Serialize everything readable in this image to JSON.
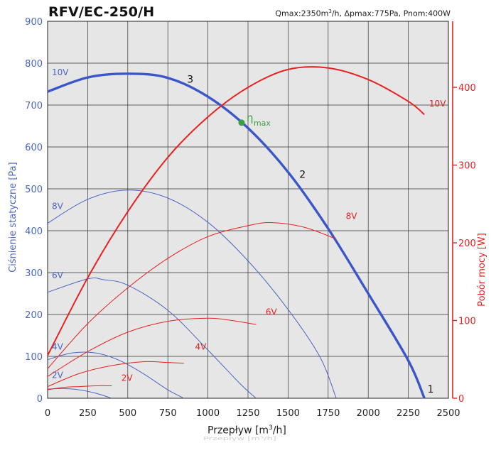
{
  "title": "RFV/EC-250/H",
  "subtitle": {
    "prefix": "Qmax:2350m",
    "sup": "3",
    "suffix": "/h, Δpmax:775Pa, Pnom:400W"
  },
  "xlabel": {
    "prefix": "Przepływ [m",
    "sup": "3",
    "suffix": "/h]"
  },
  "ghost_label": "Przepływ [m³/h]",
  "chart_data": {
    "type": "line",
    "xlabel": "Przepływ [m³/h]",
    "ylabel_left": "Ciśnienie statyczne [Pa]",
    "ylabel_right": "Pobór mocy [W]",
    "xlim": [
      0,
      2500
    ],
    "ylim_left": [
      0,
      900
    ],
    "ylim_right": [
      0,
      485
    ],
    "xticks": [
      0,
      250,
      500,
      750,
      1000,
      1250,
      1500,
      1750,
      2000,
      2250,
      2500
    ],
    "yticks_left": [
      0,
      100,
      200,
      300,
      400,
      500,
      600,
      700,
      800,
      900
    ],
    "yticks_right": [
      0,
      100,
      200,
      300,
      400
    ],
    "colors": {
      "pressure": "#4a66c0",
      "main": "#3a56c8",
      "power": "#e82020",
      "eta": "#3aa040",
      "grid": "#333333",
      "plot_bg": "#e6e6e6"
    },
    "pressure_curves": [
      {
        "name": "10V",
        "points": [
          [
            0,
            732
          ],
          [
            250,
            766
          ],
          [
            500,
            775
          ],
          [
            750,
            765
          ],
          [
            1000,
            720
          ],
          [
            1250,
            645
          ],
          [
            1500,
            540
          ],
          [
            1750,
            405
          ],
          [
            2000,
            250
          ],
          [
            2250,
            90
          ],
          [
            2350,
            0
          ]
        ]
      },
      {
        "name": "8V",
        "points": [
          [
            0,
            418
          ],
          [
            250,
            475
          ],
          [
            500,
            497
          ],
          [
            750,
            478
          ],
          [
            1000,
            420
          ],
          [
            1250,
            328
          ],
          [
            1500,
            212
          ],
          [
            1700,
            98
          ],
          [
            1800,
            0
          ]
        ]
      },
      {
        "name": "6V",
        "points": [
          [
            0,
            253
          ],
          [
            250,
            285
          ],
          [
            350,
            283
          ],
          [
            500,
            270
          ],
          [
            750,
            210
          ],
          [
            1000,
            115
          ],
          [
            1200,
            35
          ],
          [
            1300,
            0
          ]
        ]
      },
      {
        "name": "4V",
        "points": [
          [
            0,
            92
          ],
          [
            150,
            108
          ],
          [
            300,
            108
          ],
          [
            450,
            90
          ],
          [
            600,
            58
          ],
          [
            750,
            20
          ],
          [
            850,
            0
          ]
        ]
      },
      {
        "name": "2V",
        "points": [
          [
            0,
            22
          ],
          [
            100,
            23
          ],
          [
            200,
            20
          ],
          [
            300,
            12
          ],
          [
            400,
            0
          ]
        ]
      }
    ],
    "power_curves": [
      {
        "name": "10V",
        "points": [
          [
            0,
            55
          ],
          [
            250,
            155
          ],
          [
            500,
            240
          ],
          [
            750,
            310
          ],
          [
            1000,
            362
          ],
          [
            1250,
            400
          ],
          [
            1500,
            423
          ],
          [
            1750,
            425
          ],
          [
            2000,
            410
          ],
          [
            2250,
            382
          ],
          [
            2350,
            365
          ]
        ]
      },
      {
        "name": "8V",
        "points": [
          [
            0,
            38
          ],
          [
            250,
            96
          ],
          [
            500,
            142
          ],
          [
            750,
            180
          ],
          [
            1000,
            208
          ],
          [
            1250,
            222
          ],
          [
            1400,
            226
          ],
          [
            1600,
            220
          ],
          [
            1800,
            205
          ]
        ]
      },
      {
        "name": "6V",
        "points": [
          [
            0,
            28
          ],
          [
            250,
            60
          ],
          [
            500,
            85
          ],
          [
            750,
            99
          ],
          [
            1000,
            103
          ],
          [
            1150,
            100
          ],
          [
            1300,
            95
          ]
        ]
      },
      {
        "name": "4V",
        "points": [
          [
            0,
            15
          ],
          [
            200,
            32
          ],
          [
            400,
            42
          ],
          [
            600,
            47
          ],
          [
            750,
            46
          ],
          [
            850,
            45
          ]
        ]
      },
      {
        "name": "2V",
        "points": [
          [
            0,
            11
          ],
          [
            100,
            14
          ],
          [
            200,
            15
          ],
          [
            300,
            16
          ],
          [
            400,
            16
          ]
        ]
      }
    ],
    "pressure_labels": [
      {
        "text": "10V",
        "x": 0,
        "y": 780
      },
      {
        "text": "8V",
        "x": 0,
        "y": 460
      },
      {
        "text": "6V",
        "x": 0,
        "y": 295
      },
      {
        "text": "4V",
        "x": 0,
        "y": 125
      },
      {
        "text": "2V",
        "x": 0,
        "y": 57
      }
    ],
    "power_labels": [
      {
        "text": "10V",
        "x": 2380,
        "y": 380
      },
      {
        "text": "8V",
        "x": 1860,
        "y": 235
      },
      {
        "text": "6V",
        "x": 1360,
        "y": 112
      },
      {
        "text": "4V",
        "x": 920,
        "y": 67
      },
      {
        "text": "2V",
        "x": 460,
        "y": 27
      }
    ],
    "point_labels": [
      {
        "text": "3",
        "x": 870,
        "y": 762
      },
      {
        "text": "2",
        "x": 1570,
        "y": 535
      },
      {
        "text": "1",
        "x": 2370,
        "y": 22
      }
    ],
    "eta_max": {
      "label": "η",
      "sub": "max",
      "x": 1210,
      "y": 658
    }
  }
}
